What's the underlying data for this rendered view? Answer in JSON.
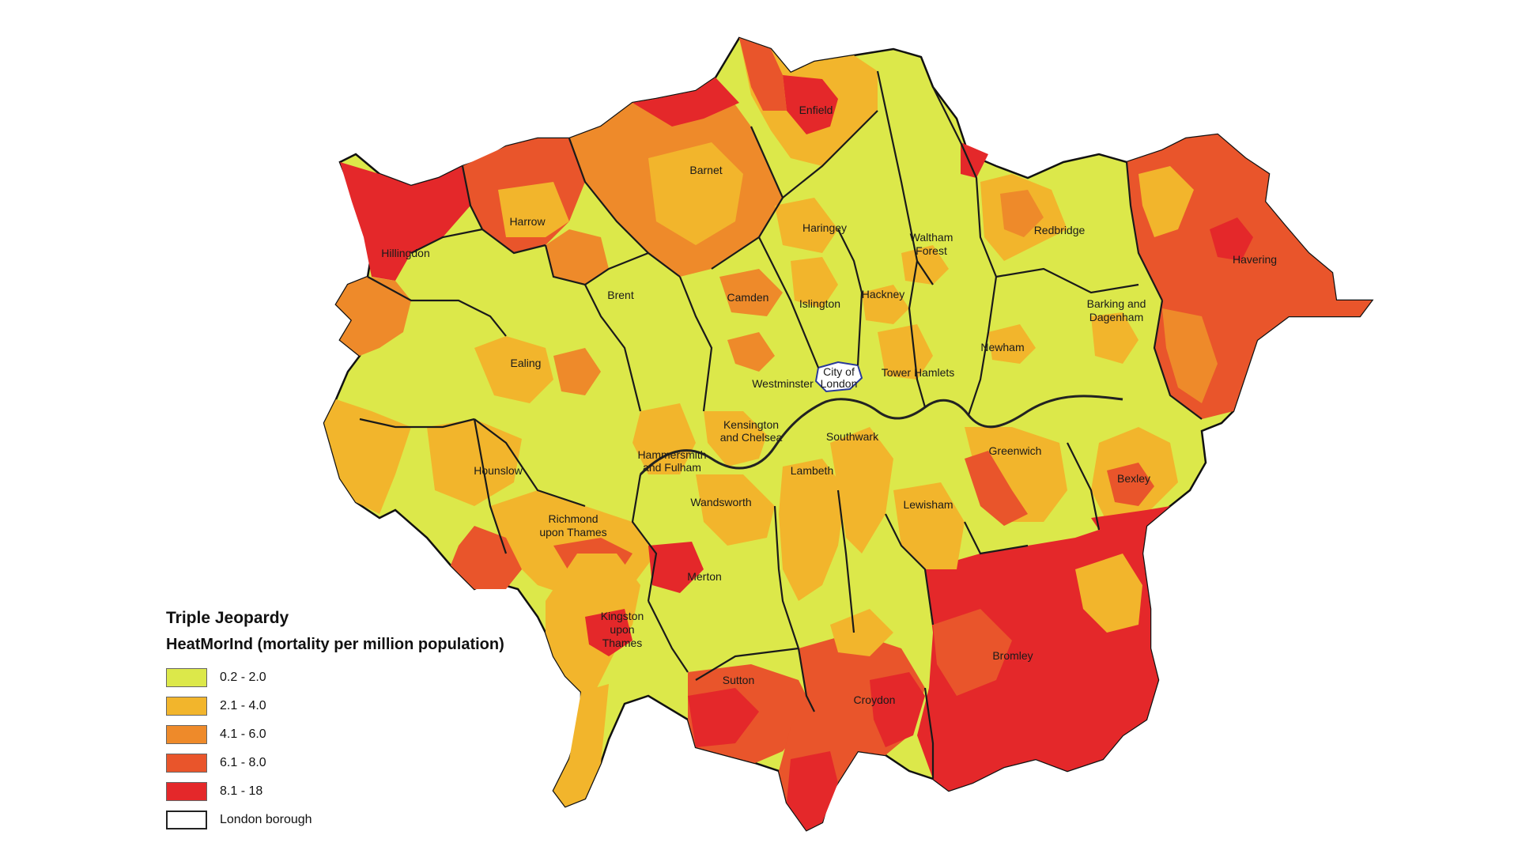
{
  "legend": {
    "title": "Triple Jeopardy",
    "subtitle": "HeatMorInd (mortality per million population)",
    "classes": [
      {
        "label": "0.2 - 2.0",
        "color": "#dce84a"
      },
      {
        "label": "2.1 - 4.0",
        "color": "#f2b52c"
      },
      {
        "label": "4.1 - 6.0",
        "color": "#ee8a2a"
      },
      {
        "label": "6.1 - 8.0",
        "color": "#e9552b"
      },
      {
        "label": "8.1 - 18",
        "color": "#e4282a"
      }
    ],
    "boundary_label": "London borough"
  },
  "boroughs": [
    {
      "name": "Enfield",
      "class": 3
    },
    {
      "name": "Barnet",
      "class": 2
    },
    {
      "name": "Harrow",
      "class": 1
    },
    {
      "name": "Hillingdon",
      "class": 4
    },
    {
      "name": "Haringey",
      "class": 0
    },
    {
      "name": "Waltham Forest",
      "class": 0
    },
    {
      "name": "Redbridge",
      "class": 1
    },
    {
      "name": "Havering",
      "class": 3
    },
    {
      "name": "Brent",
      "class": 0
    },
    {
      "name": "Camden",
      "class": 0
    },
    {
      "name": "Islington",
      "class": 0
    },
    {
      "name": "Hackney",
      "class": 0
    },
    {
      "name": "Barking and Dagenham",
      "class": 0
    },
    {
      "name": "Ealing",
      "class": 0
    },
    {
      "name": "Newham",
      "class": 0
    },
    {
      "name": "City of London",
      "class": -1
    },
    {
      "name": "Tower Hamlets",
      "class": 0
    },
    {
      "name": "Westminster",
      "class": 0
    },
    {
      "name": "Kensington and Chelsea",
      "class": 1
    },
    {
      "name": "Southwark",
      "class": 0
    },
    {
      "name": "Hammersmith and Fulham",
      "class": 1
    },
    {
      "name": "Hounslow",
      "class": 0
    },
    {
      "name": "Greenwich",
      "class": 1
    },
    {
      "name": "Lambeth",
      "class": 1
    },
    {
      "name": "Bexley",
      "class": 1
    },
    {
      "name": "Wandsworth",
      "class": 0
    },
    {
      "name": "Lewisham",
      "class": 0
    },
    {
      "name": "Richmond upon Thames",
      "class": 2
    },
    {
      "name": "Merton",
      "class": 0
    },
    {
      "name": "Kingston upon Thames",
      "class": 2
    },
    {
      "name": "Bromley",
      "class": 4
    },
    {
      "name": "Sutton",
      "class": 3
    },
    {
      "name": "Croydon",
      "class": 2
    }
  ]
}
